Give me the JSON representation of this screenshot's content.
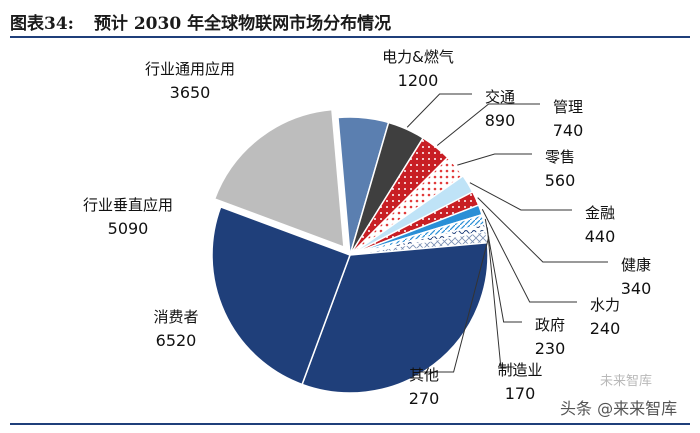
{
  "header": {
    "figure_number": "图表34:",
    "title": "预计 2030 年全球物联网市场分布情况"
  },
  "watermark": {
    "text": "头条 @来来智库",
    "logo_text": "未来智库"
  },
  "chart_data": {
    "type": "pie",
    "title": "预计 2030 年全球物联网市场分布情况",
    "slices": [
      {
        "label": "电力&燃气",
        "value": 1200,
        "color": "#5b7fb0",
        "pattern": "solid"
      },
      {
        "label": "交通",
        "value": 890,
        "color": "#3f3f3f",
        "pattern": "solid"
      },
      {
        "label": "管理",
        "value": 740,
        "color": "#c81e24",
        "pattern": "dots"
      },
      {
        "label": "零售",
        "value": 560,
        "color": "#ffffff",
        "pattern": "red-dots"
      },
      {
        "label": "金融",
        "value": 440,
        "color": "#bfe3f7",
        "pattern": "solid"
      },
      {
        "label": "健康",
        "value": 340,
        "color": "#f06060",
        "pattern": "dots"
      },
      {
        "label": "水力",
        "value": 240,
        "color": "#2a8fd6",
        "pattern": "solid"
      },
      {
        "label": "政府",
        "value": 230,
        "color": "#e3eef8",
        "pattern": "hatch-blue"
      },
      {
        "label": "制造业",
        "value": 170,
        "color": "#ffffff",
        "pattern": "waves"
      },
      {
        "label": "其他",
        "value": 270,
        "color": "#ffffff",
        "pattern": "diamonds"
      },
      {
        "label": "消费者",
        "value": 6520,
        "color": "#1f3f7a",
        "pattern": "solid"
      },
      {
        "label": "行业垂直应用",
        "value": 5090,
        "color": "#1f3f7a",
        "pattern": "solid"
      },
      {
        "label": "行业通用应用",
        "value": 3650,
        "color": "#bdbdbd",
        "pattern": "solid"
      }
    ]
  }
}
